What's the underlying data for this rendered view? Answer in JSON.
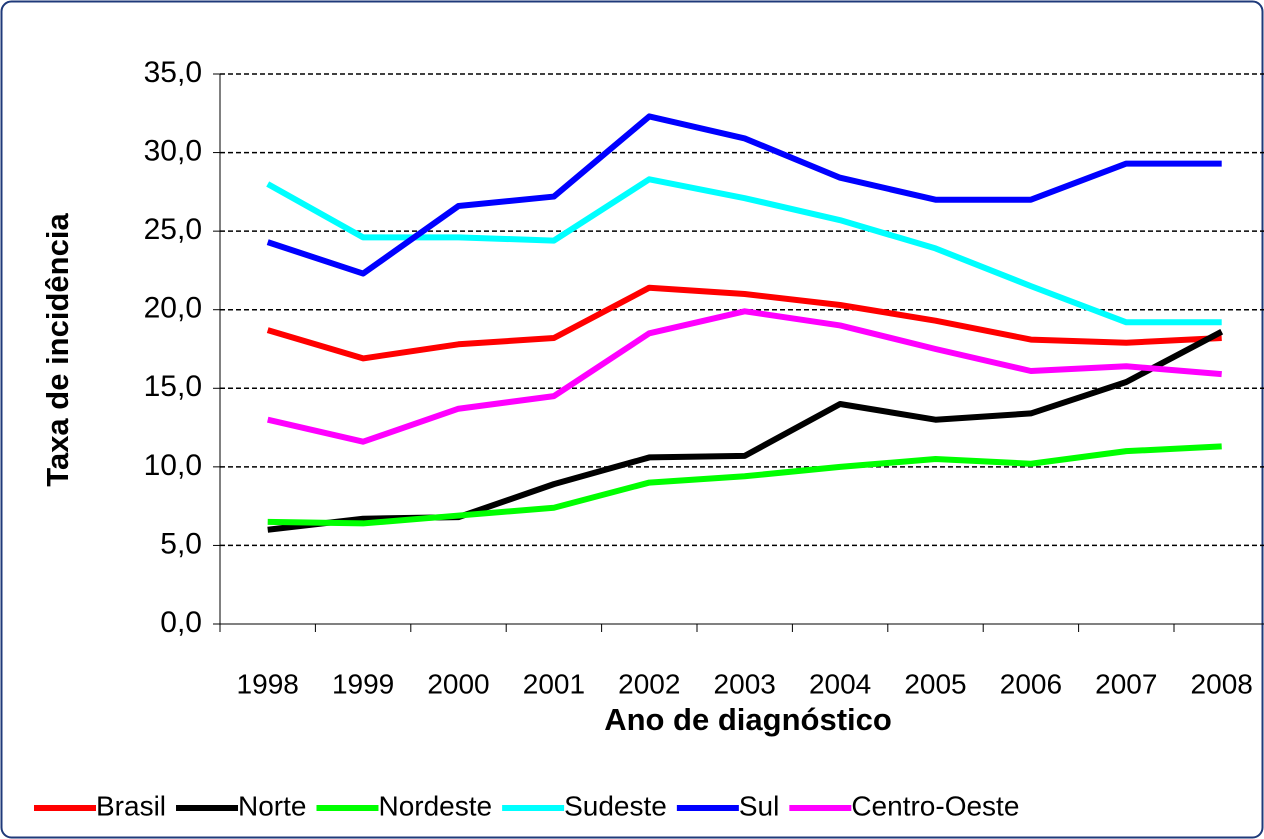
{
  "chart_data": {
    "type": "line",
    "x_label": "Ano de diagnóstico",
    "y_label": "Taxa de incidência",
    "categories": [
      "1998",
      "1999",
      "2000",
      "2001",
      "2002",
      "2003",
      "2004",
      "2005",
      "2006",
      "2007",
      "2008"
    ],
    "series": [
      {
        "name": "Brasil",
        "color": "#ff0000",
        "values": [
          18.7,
          16.9,
          17.8,
          18.2,
          21.4,
          21.0,
          20.3,
          19.3,
          18.1,
          17.9,
          18.2
        ]
      },
      {
        "name": "Norte",
        "color": "#000000",
        "values": [
          6.0,
          6.7,
          6.8,
          8.9,
          10.6,
          10.7,
          14.0,
          13.0,
          13.4,
          15.4,
          18.6
        ]
      },
      {
        "name": "Nordeste",
        "color": "#00ff00",
        "values": [
          6.5,
          6.4,
          6.9,
          7.4,
          9.0,
          9.4,
          10.0,
          10.5,
          10.2,
          11.0,
          11.3
        ]
      },
      {
        "name": "Sudeste",
        "color": "#00ffff",
        "values": [
          28.0,
          24.6,
          24.6,
          24.4,
          28.3,
          27.1,
          25.7,
          23.9,
          21.5,
          19.2,
          19.2
        ]
      },
      {
        "name": "Sul",
        "color": "#0000ff",
        "values": [
          24.3,
          22.3,
          26.6,
          27.2,
          32.3,
          30.9,
          28.4,
          27.0,
          27.0,
          29.3,
          29.3
        ]
      },
      {
        "name": "Centro-Oeste",
        "color": "#ff00ff",
        "values": [
          13.0,
          11.6,
          13.7,
          14.5,
          18.5,
          19.9,
          19.0,
          17.5,
          16.1,
          16.4,
          15.9
        ]
      }
    ],
    "ylim": [
      0,
      35
    ],
    "yticks": [
      {
        "value": 0,
        "label": "0,0"
      },
      {
        "value": 5,
        "label": "5,0"
      },
      {
        "value": 10,
        "label": "10,0"
      },
      {
        "value": 15,
        "label": "15,0"
      },
      {
        "value": 20,
        "label": "20,0"
      },
      {
        "value": 25,
        "label": "25,0"
      },
      {
        "value": 30,
        "label": "30,0"
      },
      {
        "value": 35,
        "label": "35,0"
      }
    ],
    "grid": true,
    "legend": "bottom"
  }
}
